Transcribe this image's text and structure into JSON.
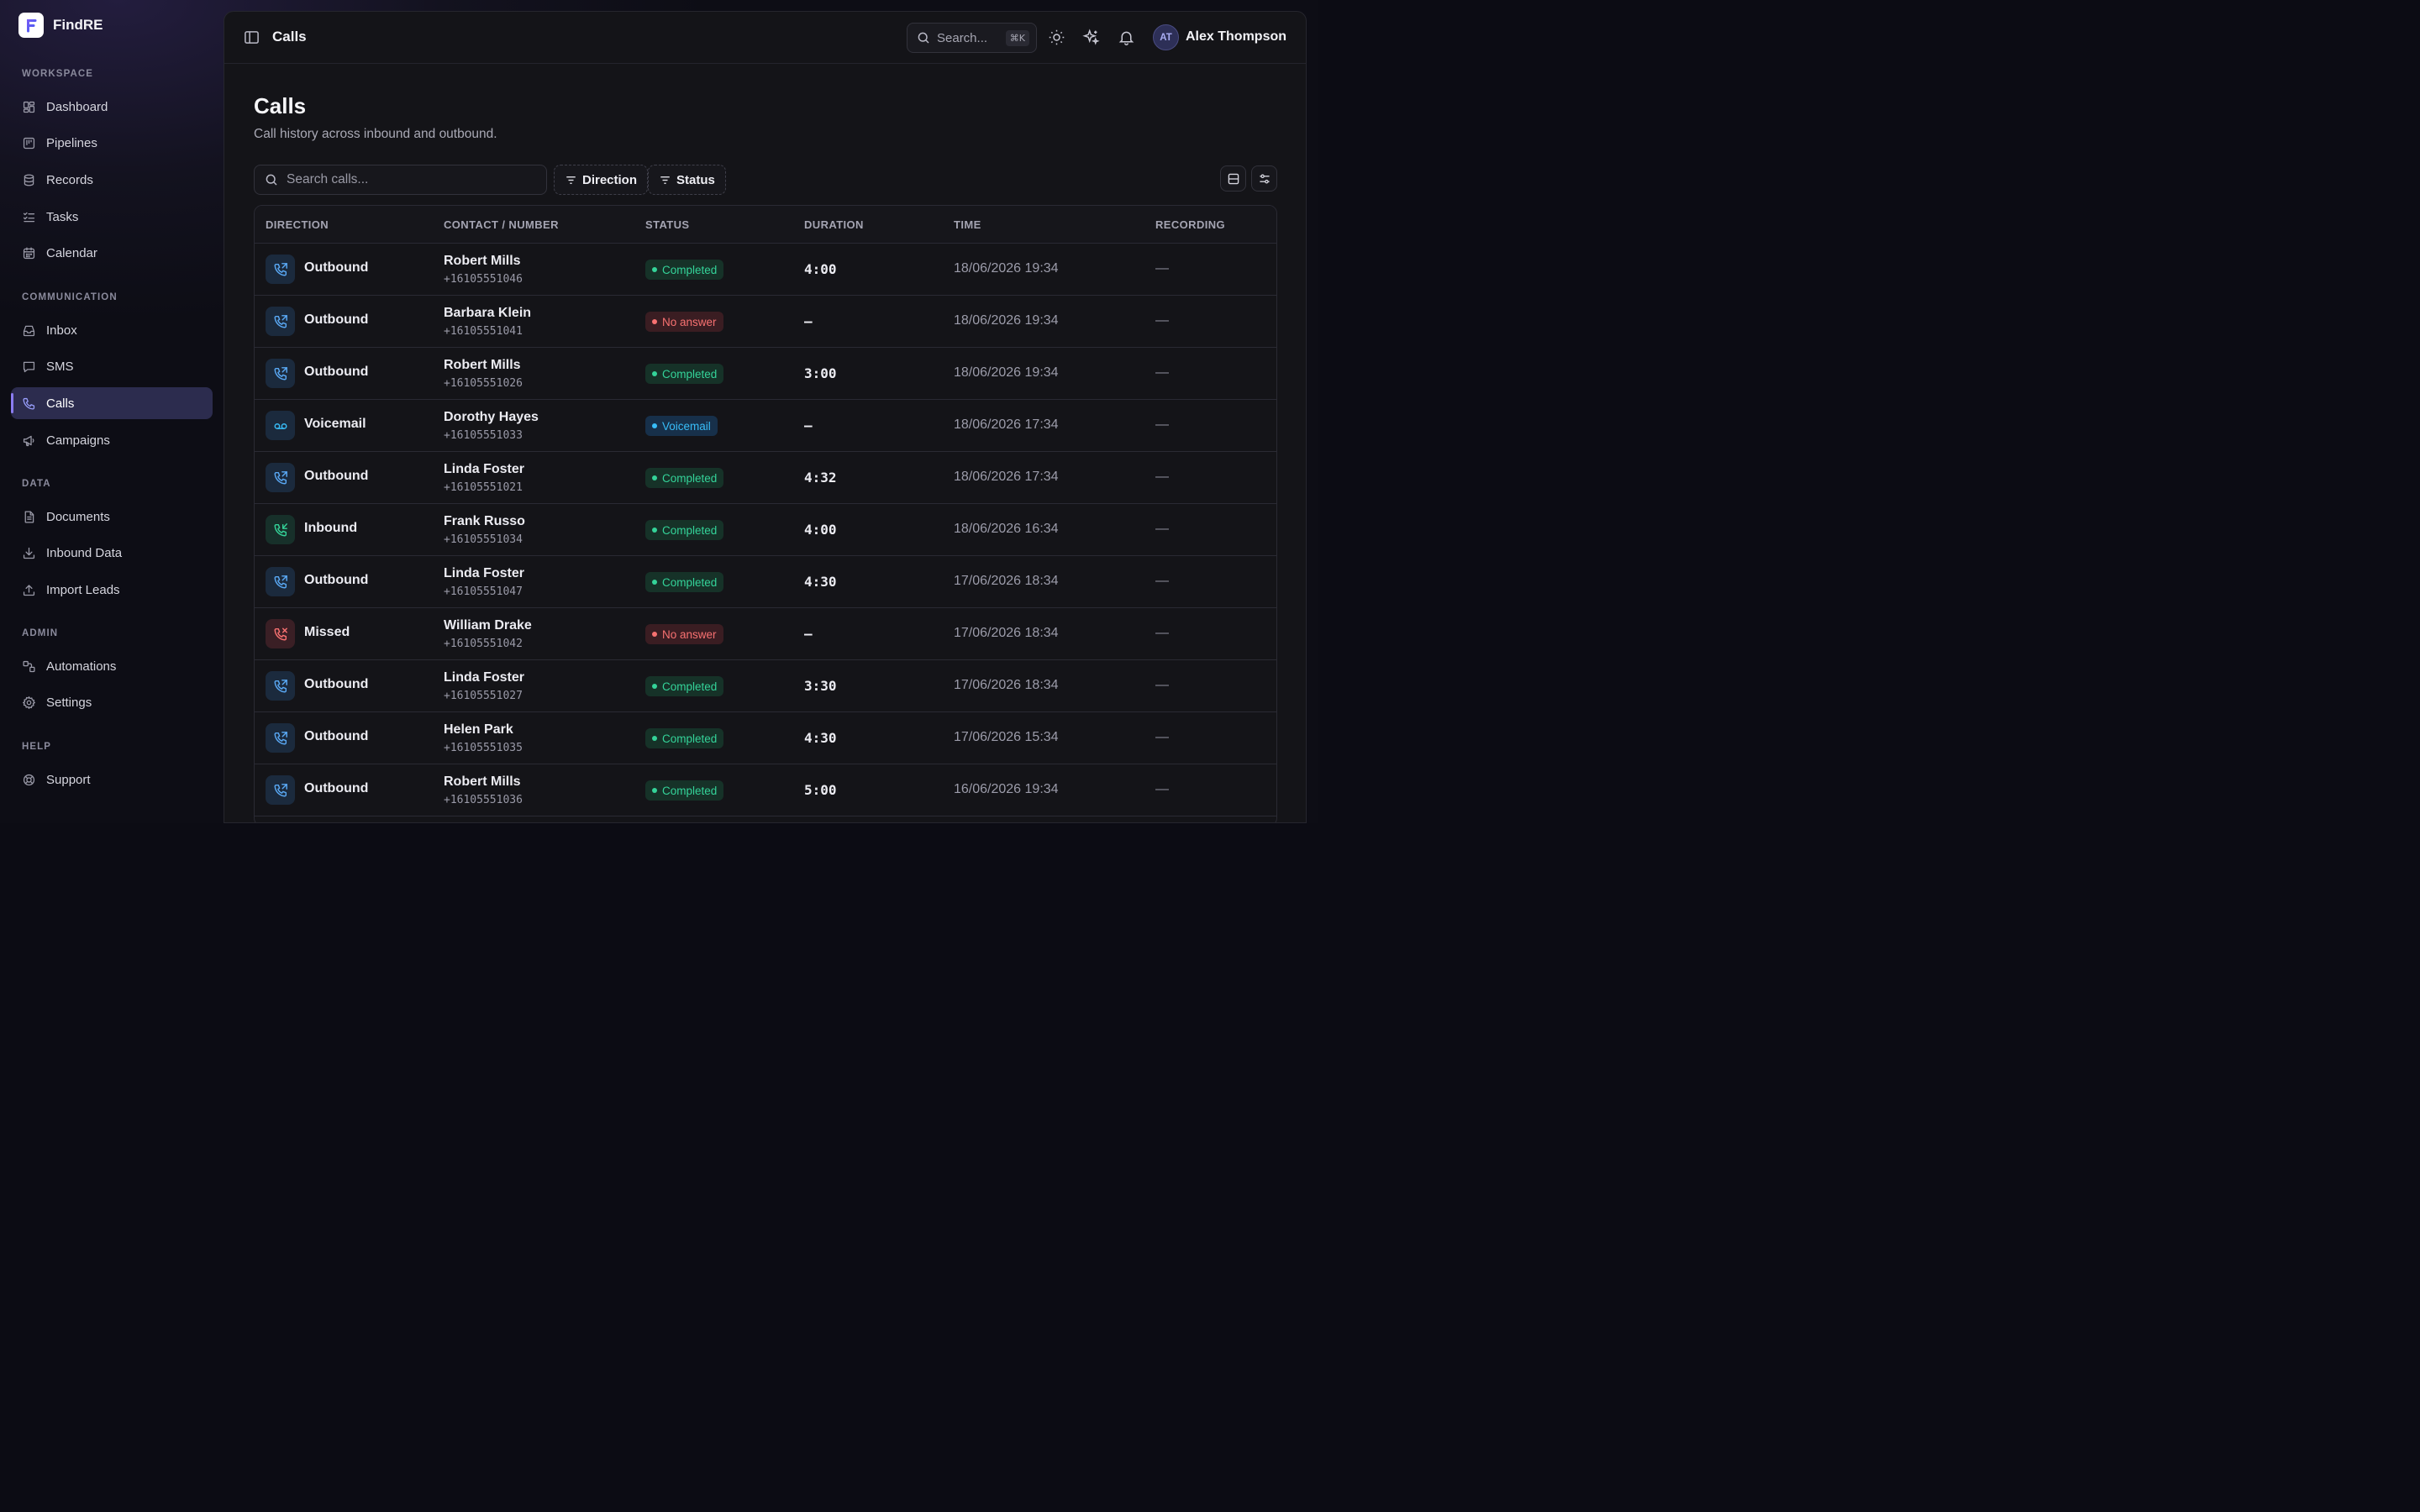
{
  "brand": {
    "name": "FindRE"
  },
  "sidebar": {
    "sections": [
      {
        "title": "WORKSPACE",
        "items": [
          {
            "label": "Dashboard",
            "icon": "dashboard-icon"
          },
          {
            "label": "Pipelines",
            "icon": "pipelines-icon"
          },
          {
            "label": "Records",
            "icon": "database-icon"
          },
          {
            "label": "Tasks",
            "icon": "tasks-icon"
          },
          {
            "label": "Calendar",
            "icon": "calendar-icon"
          }
        ]
      },
      {
        "title": "COMMUNICATION",
        "items": [
          {
            "label": "Inbox",
            "icon": "inbox-icon"
          },
          {
            "label": "SMS",
            "icon": "message-icon"
          },
          {
            "label": "Calls",
            "icon": "phone-icon",
            "active": true
          },
          {
            "label": "Campaigns",
            "icon": "megaphone-icon"
          }
        ]
      },
      {
        "title": "DATA",
        "items": [
          {
            "label": "Documents",
            "icon": "document-icon"
          },
          {
            "label": "Inbound Data",
            "icon": "download-icon"
          },
          {
            "label": "Import Leads",
            "icon": "upload-icon"
          }
        ]
      },
      {
        "title": "ADMIN",
        "items": [
          {
            "label": "Automations",
            "icon": "workflow-icon"
          },
          {
            "label": "Settings",
            "icon": "gear-icon"
          }
        ]
      },
      {
        "title": "HELP",
        "items": [
          {
            "label": "Support",
            "icon": "lifebuoy-icon"
          }
        ]
      }
    ]
  },
  "topbar": {
    "breadcrumb": "Calls",
    "search_label": "Search...",
    "search_shortcut": "⌘K",
    "user": {
      "initials": "AT",
      "name": "Alex Thompson"
    }
  },
  "page": {
    "title": "Calls",
    "subtitle": "Call history across inbound and outbound.",
    "search_placeholder": "Search calls...",
    "filters": [
      "Direction",
      "Status"
    ]
  },
  "table": {
    "columns": [
      "DIRECTION",
      "CONTACT / NUMBER",
      "STATUS",
      "DURATION",
      "TIME",
      "RECORDING"
    ],
    "rows": [
      {
        "direction": "Outbound",
        "name": "Robert Mills",
        "number": "+16105551046",
        "status": "Completed",
        "duration": "4:00",
        "time": "18/06/2026 19:34",
        "recording": "—"
      },
      {
        "direction": "Outbound",
        "name": "Barbara Klein",
        "number": "+16105551041",
        "status": "No answer",
        "duration": "–",
        "time": "18/06/2026 19:34",
        "recording": "—"
      },
      {
        "direction": "Outbound",
        "name": "Robert Mills",
        "number": "+16105551026",
        "status": "Completed",
        "duration": "3:00",
        "time": "18/06/2026 19:34",
        "recording": "—"
      },
      {
        "direction": "Voicemail",
        "name": "Dorothy Hayes",
        "number": "+16105551033",
        "status": "Voicemail",
        "duration": "–",
        "time": "18/06/2026 17:34",
        "recording": "—"
      },
      {
        "direction": "Outbound",
        "name": "Linda Foster",
        "number": "+16105551021",
        "status": "Completed",
        "duration": "4:32",
        "time": "18/06/2026 17:34",
        "recording": "—"
      },
      {
        "direction": "Inbound",
        "name": "Frank Russo",
        "number": "+16105551034",
        "status": "Completed",
        "duration": "4:00",
        "time": "18/06/2026 16:34",
        "recording": "—"
      },
      {
        "direction": "Outbound",
        "name": "Linda Foster",
        "number": "+16105551047",
        "status": "Completed",
        "duration": "4:30",
        "time": "17/06/2026 18:34",
        "recording": "—"
      },
      {
        "direction": "Missed",
        "name": "William Drake",
        "number": "+16105551042",
        "status": "No answer",
        "duration": "–",
        "time": "17/06/2026 18:34",
        "recording": "—"
      },
      {
        "direction": "Outbound",
        "name": "Linda Foster",
        "number": "+16105551027",
        "status": "Completed",
        "duration": "3:30",
        "time": "17/06/2026 18:34",
        "recording": "—"
      },
      {
        "direction": "Outbound",
        "name": "Helen Park",
        "number": "+16105551035",
        "status": "Completed",
        "duration": "4:30",
        "time": "17/06/2026 15:34",
        "recording": "—"
      },
      {
        "direction": "Outbound",
        "name": "Robert Mills",
        "number": "+16105551036",
        "status": "Completed",
        "duration": "5:00",
        "time": "16/06/2026 19:34",
        "recording": "—"
      }
    ]
  },
  "colors": {
    "accent": "#8a7cf0",
    "completed": "#34d399",
    "no_answer": "#f87171",
    "voicemail": "#38bdf8",
    "outbound": "#5aa9f5",
    "inbound": "#34d399",
    "missed": "#f87171"
  }
}
